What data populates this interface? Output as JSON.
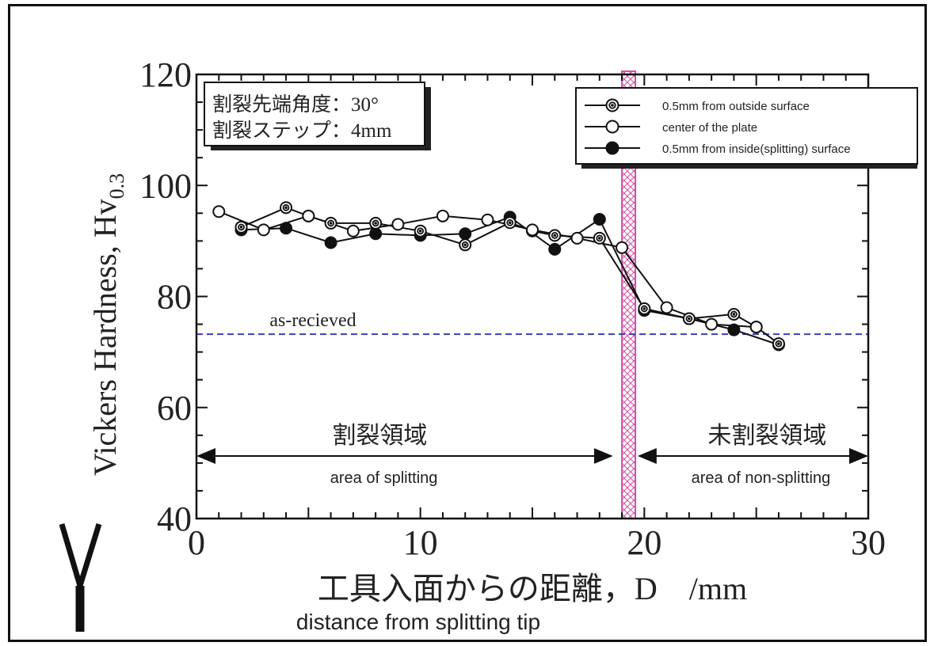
{
  "chart_data": {
    "type": "line",
    "title": "",
    "xlabel": "工具入面からの距離，D　/mm",
    "xlabel_en": "distance from splitting tip",
    "ylabel": "Vickers Hardness,  Hv",
    "ylabel_sub": "0.3",
    "xlim": [
      0,
      30
    ],
    "ylim": [
      40,
      120
    ],
    "x_ticks": [
      0,
      10,
      20,
      30
    ],
    "y_ticks": [
      40,
      60,
      80,
      100,
      120
    ],
    "grid": false,
    "legend_position": "top-right",
    "condition_box": [
      "割裂先端角度：30°",
      "割裂ステップ：4mm"
    ],
    "reference_line": {
      "label": "as-recieved",
      "value": 73.2,
      "color": "#3b3fb0"
    },
    "boundary": {
      "x_from": 19.0,
      "x_to": 19.6,
      "color": "#d24fa6"
    },
    "regions": [
      {
        "label_ja": "割裂領域",
        "label_en": "area of splitting",
        "x_from": 0,
        "x_to": 18.6
      },
      {
        "label_ja": "未割裂領域",
        "label_en": "area of non-splitting",
        "x_from": 19.7,
        "x_to": 30
      }
    ],
    "series": [
      {
        "name": "0.5mm from outside surface",
        "marker": "double-circle",
        "x": [
          2,
          4,
          5,
          6,
          8,
          10,
          12,
          14,
          15,
          16,
          18,
          20,
          22,
          24,
          25,
          26
        ],
        "y": [
          92.5,
          96,
          94.5,
          93.2,
          93.2,
          91.8,
          89.3,
          93.3,
          91.8,
          91,
          90.5,
          77.8,
          76,
          76.8,
          74.5,
          71.5
        ]
      },
      {
        "name": "center of the plate",
        "marker": "open-circle",
        "x": [
          1,
          3,
          5,
          7,
          9,
          11,
          13,
          15,
          17,
          19,
          21,
          23,
          25
        ],
        "y": [
          95.3,
          92,
          94.5,
          91.8,
          93,
          94.5,
          93.8,
          92,
          90.5,
          88.8,
          78,
          75,
          74.5
        ]
      },
      {
        "name": "0.5mm from inside(splitting) surface",
        "marker": "filled-circle",
        "x": [
          2,
          4,
          6,
          8,
          10,
          12,
          14,
          16,
          18,
          20,
          22,
          24,
          26
        ],
        "y": [
          92,
          92.3,
          89.7,
          91.3,
          91,
          91.3,
          94.3,
          88.5,
          93.9,
          77.5,
          76,
          74,
          71.3
        ]
      }
    ]
  }
}
